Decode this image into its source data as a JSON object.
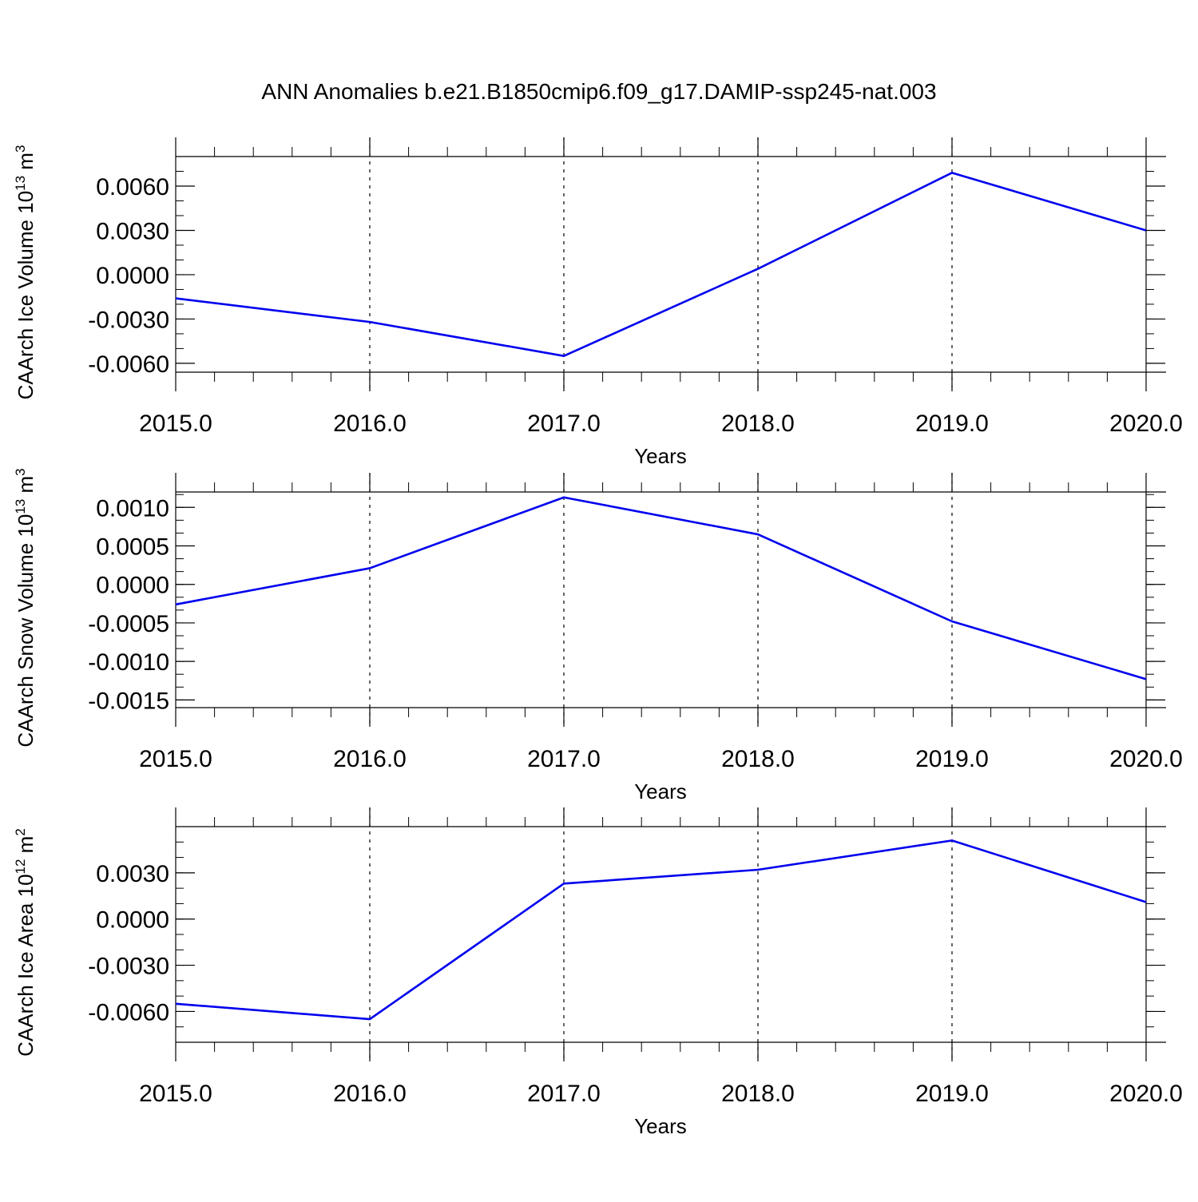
{
  "figure": {
    "title": "ANN Anomalies b.e21.B1850cmip6.f09_g17.DAMIP-ssp245-nat.003"
  },
  "chart_data": [
    {
      "type": "line",
      "xlabel": "Years",
      "ylabel": {
        "text": "CAArch Ice Volume 10",
        "sup1": "13",
        "mid": " m",
        "sup2": "3"
      },
      "xlim": [
        2015.0,
        2020.0
      ],
      "ylim": [
        -0.0066,
        0.008
      ],
      "x_ticks": [
        2015.0,
        2016.0,
        2017.0,
        2018.0,
        2019.0,
        2020.0
      ],
      "x_tick_labels": [
        "2015.0",
        "2016.0",
        "2017.0",
        "2018.0",
        "2019.0",
        "2020.0"
      ],
      "y_ticks": [
        -0.006,
        -0.003,
        0.0,
        0.003,
        0.006
      ],
      "y_tick_labels": [
        "-0.0060",
        "-0.0030",
        "0.0000",
        "0.0030",
        "0.0060"
      ],
      "grid": "vertical-dashed",
      "series": [
        {
          "color": "#0000ee",
          "x": [
            2015,
            2016,
            2017,
            2018,
            2019,
            2020
          ],
          "values": [
            -0.0016,
            -0.0032,
            -0.0055,
            0.0004,
            0.0069,
            0.003
          ]
        }
      ]
    },
    {
      "type": "line",
      "xlabel": "Years",
      "ylabel": {
        "text": "CAArch Snow Volume 10",
        "sup1": "13",
        "mid": " m",
        "sup2": "3"
      },
      "xlim": [
        2015.0,
        2020.0
      ],
      "ylim": [
        -0.0016,
        0.0012
      ],
      "x_ticks": [
        2015.0,
        2016.0,
        2017.0,
        2018.0,
        2019.0,
        2020.0
      ],
      "x_tick_labels": [
        "2015.0",
        "2016.0",
        "2017.0",
        "2018.0",
        "2019.0",
        "2020.0"
      ],
      "y_ticks": [
        -0.0015,
        -0.001,
        -0.0005,
        0.0,
        0.0005,
        0.001
      ],
      "y_tick_labels": [
        "-0.0015",
        "-0.0010",
        "-0.0005",
        "0.0000",
        "0.0005",
        "0.0010"
      ],
      "grid": "vertical-dashed",
      "series": [
        {
          "color": "#0000ee",
          "x": [
            2015,
            2016,
            2017,
            2018,
            2019,
            2020
          ],
          "values": [
            -0.00026,
            0.00021,
            0.00113,
            0.00065,
            -0.00048,
            -0.00123
          ]
        }
      ]
    },
    {
      "type": "line",
      "xlabel": "Years",
      "ylabel": {
        "text": "CAArch Ice Area 10",
        "sup1": "12",
        "mid": " m",
        "sup2": "2"
      },
      "xlim": [
        2015.0,
        2020.0
      ],
      "ylim": [
        -0.008,
        0.006
      ],
      "x_ticks": [
        2015.0,
        2016.0,
        2017.0,
        2018.0,
        2019.0,
        2020.0
      ],
      "x_tick_labels": [
        "2015.0",
        "2016.0",
        "2017.0",
        "2018.0",
        "2019.0",
        "2020.0"
      ],
      "y_ticks": [
        -0.006,
        -0.003,
        0.0,
        0.003
      ],
      "y_tick_labels": [
        "-0.0060",
        "-0.0030",
        "0.0000",
        "0.0030"
      ],
      "grid": "vertical-dashed",
      "series": [
        {
          "color": "#0000ee",
          "x": [
            2015,
            2016,
            2017,
            2018,
            2019,
            2020
          ],
          "values": [
            -0.0055,
            -0.0065,
            0.0023,
            0.0032,
            0.0051,
            0.0011
          ]
        }
      ]
    }
  ]
}
